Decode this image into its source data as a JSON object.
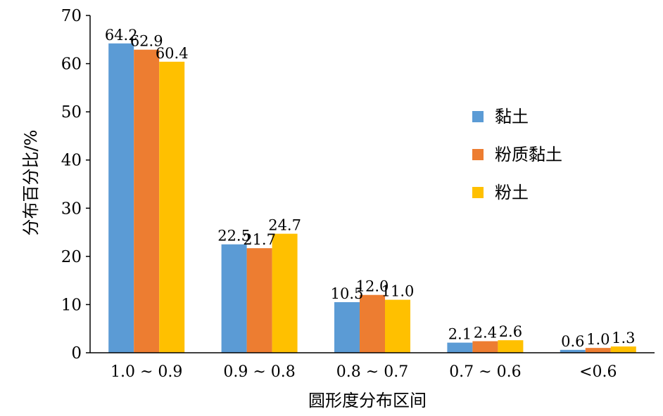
{
  "chart_data": {
    "type": "bar",
    "title": "",
    "xlabel": "圆形度分布区间",
    "ylabel": "分布百分比/%",
    "ylim": [
      0,
      70
    ],
    "yticks": [
      0,
      10,
      20,
      30,
      40,
      50,
      60,
      70
    ],
    "categories": [
      "1.0 ~ 0.9",
      "0.9 ~ 0.8",
      "0.8 ~ 0.7",
      "0.7 ~ 0.6",
      "<0.6"
    ],
    "series": [
      {
        "name": "黏土",
        "color": "#5b9bd5",
        "values": [
          64.2,
          22.5,
          10.5,
          2.1,
          0.6
        ]
      },
      {
        "name": "粉质黏土",
        "color": "#ed7d31",
        "values": [
          62.9,
          21.7,
          12.0,
          2.4,
          1.0
        ]
      },
      {
        "name": "粉土",
        "color": "#ffc000",
        "values": [
          60.4,
          24.7,
          11.0,
          2.6,
          1.3
        ]
      }
    ],
    "data_labels": true,
    "grid": false,
    "legend_position": "right"
  }
}
